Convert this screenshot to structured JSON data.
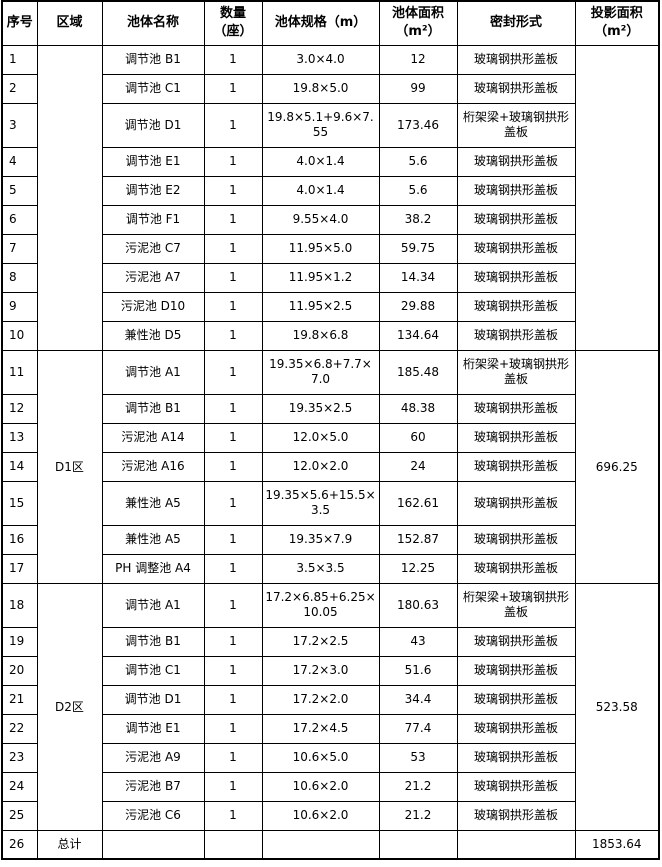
{
  "header": {
    "seq": "序号",
    "region": "区域",
    "name": "池体名称",
    "qty": "数量（座）",
    "spec": "池体规格（m）",
    "area": "池体面积（m²）",
    "seal": "密封形式",
    "proj": "投影面积（m²）"
  },
  "groups": [
    {
      "region": "",
      "proj": "",
      "rows": [
        {
          "seq": "1",
          "name": "调节池 B1",
          "qty": "1",
          "spec": "3.0×4.0",
          "area": "12",
          "seal": "玻璃钢拱形盖板"
        },
        {
          "seq": "2",
          "name": "调节池 C1",
          "qty": "1",
          "spec": "19.8×5.0",
          "area": "99",
          "seal": "玻璃钢拱形盖板"
        },
        {
          "seq": "3",
          "name": "调节池 D1",
          "qty": "1",
          "spec": "19.8×5.1+9.6×7.55",
          "area": "173.46",
          "seal": "桁架梁+玻璃钢拱形盖板"
        },
        {
          "seq": "4",
          "name": "调节池 E1",
          "qty": "1",
          "spec": "4.0×1.4",
          "area": "5.6",
          "seal": "玻璃钢拱形盖板"
        },
        {
          "seq": "5",
          "name": "调节池 E2",
          "qty": "1",
          "spec": "4.0×1.4",
          "area": "5.6",
          "seal": "玻璃钢拱形盖板"
        },
        {
          "seq": "6",
          "name": "调节池 F1",
          "qty": "1",
          "spec": "9.55×4.0",
          "area": "38.2",
          "seal": "玻璃钢拱形盖板"
        },
        {
          "seq": "7",
          "name": "污泥池 C7",
          "qty": "1",
          "spec": "11.95×5.0",
          "area": "59.75",
          "seal": "玻璃钢拱形盖板"
        },
        {
          "seq": "8",
          "name": "污泥池 A7",
          "qty": "1",
          "spec": "11.95×1.2",
          "area": "14.34",
          "seal": "玻璃钢拱形盖板"
        },
        {
          "seq": "9",
          "name": "污泥池 D10",
          "qty": "1",
          "spec": "11.95×2.5",
          "area": "29.88",
          "seal": "玻璃钢拱形盖板"
        },
        {
          "seq": "10",
          "name": "兼性池 D5",
          "qty": "1",
          "spec": "19.8×6.8",
          "area": "134.64",
          "seal": "玻璃钢拱形盖板"
        }
      ]
    },
    {
      "region": "D1区",
      "proj": "696.25",
      "rows": [
        {
          "seq": "11",
          "name": "调节池 A1",
          "qty": "1",
          "spec": "19.35×6.8+7.7×7.0",
          "area": "185.48",
          "seal": "桁架梁+玻璃钢拱形盖板"
        },
        {
          "seq": "12",
          "name": "调节池 B1",
          "qty": "1",
          "spec": "19.35×2.5",
          "area": "48.38",
          "seal": "玻璃钢拱形盖板"
        },
        {
          "seq": "13",
          "name": "污泥池 A14",
          "qty": "1",
          "spec": "12.0×5.0",
          "area": "60",
          "seal": "玻璃钢拱形盖板"
        },
        {
          "seq": "14",
          "name": "污泥池 A16",
          "qty": "1",
          "spec": "12.0×2.0",
          "area": "24",
          "seal": "玻璃钢拱形盖板"
        },
        {
          "seq": "15",
          "name": "兼性池 A5",
          "qty": "1",
          "spec": "19.35×5.6+15.5×3.5",
          "area": "162.61",
          "seal": "玻璃钢拱形盖板"
        },
        {
          "seq": "16",
          "name": "兼性池 A5",
          "qty": "1",
          "spec": "19.35×7.9",
          "area": "152.87",
          "seal": "玻璃钢拱形盖板"
        },
        {
          "seq": "17",
          "name": "PH 调整池 A4",
          "qty": "1",
          "spec": "3.5×3.5",
          "area": "12.25",
          "seal": "玻璃钢拱形盖板"
        }
      ]
    },
    {
      "region": "D2区",
      "proj": "523.58",
      "rows": [
        {
          "seq": "18",
          "name": "调节池 A1",
          "qty": "1",
          "spec": "17.2×6.85+6.25×10.05",
          "area": "180.63",
          "seal": "桁架梁+玻璃钢拱形盖板"
        },
        {
          "seq": "19",
          "name": "调节池 B1",
          "qty": "1",
          "spec": "17.2×2.5",
          "area": "43",
          "seal": "玻璃钢拱形盖板"
        },
        {
          "seq": "20",
          "name": "调节池 C1",
          "qty": "1",
          "spec": "17.2×3.0",
          "area": "51.6",
          "seal": "玻璃钢拱形盖板"
        },
        {
          "seq": "21",
          "name": "调节池 D1",
          "qty": "1",
          "spec": "17.2×2.0",
          "area": "34.4",
          "seal": "玻璃钢拱形盖板"
        },
        {
          "seq": "22",
          "name": "调节池 E1",
          "qty": "1",
          "spec": "17.2×4.5",
          "area": "77.4",
          "seal": "玻璃钢拱形盖板"
        },
        {
          "seq": "23",
          "name": "污泥池 A9",
          "qty": "1",
          "spec": "10.6×5.0",
          "area": "53",
          "seal": "玻璃钢拱形盖板"
        },
        {
          "seq": "24",
          "name": "污泥池 B7",
          "qty": "1",
          "spec": "10.6×2.0",
          "area": "21.2",
          "seal": "玻璃钢拱形盖板"
        },
        {
          "seq": "25",
          "name": "污泥池 C6",
          "qty": "1",
          "spec": "10.6×2.0",
          "area": "21.2",
          "seal": "玻璃钢拱形盖板"
        }
      ]
    }
  ],
  "total": {
    "seq": "26",
    "label": "总计",
    "proj": "1853.64"
  }
}
